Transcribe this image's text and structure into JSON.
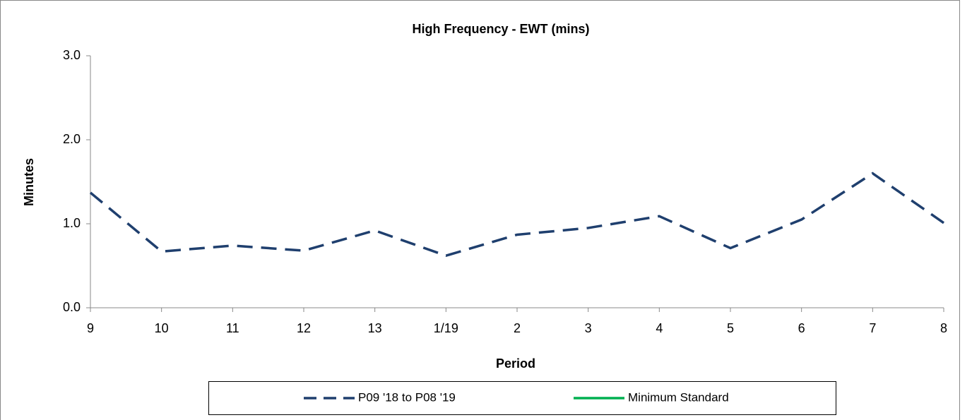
{
  "chart_data": {
    "type": "line",
    "title": "High Frequency - EWT (mins)",
    "x_label": "Period",
    "y_label": "Minutes",
    "categories": [
      "9",
      "10",
      "11",
      "12",
      "13",
      "1/19",
      "2",
      "3",
      "4",
      "5",
      "6",
      "7",
      "8"
    ],
    "series": [
      {
        "name": "P09 '18 to P08 '19",
        "color": "#1f3f6e",
        "dashed": true,
        "values": [
          1.37,
          0.67,
          0.74,
          0.68,
          0.92,
          0.62,
          0.87,
          0.95,
          1.09,
          0.71,
          1.05,
          1.6,
          1.01
        ]
      },
      {
        "name": "Minimum Standard",
        "color": "#00b050",
        "dashed": false,
        "values": [
          null,
          null,
          null,
          null,
          null,
          null,
          null,
          null,
          null,
          null,
          null,
          null,
          null
        ]
      }
    ],
    "ylim": [
      0,
      3
    ],
    "yticks": [
      {
        "value": 0,
        "label": "0.0"
      },
      {
        "value": 1,
        "label": "1.0"
      },
      {
        "value": 2,
        "label": "2.0"
      },
      {
        "value": 3,
        "label": "3.0"
      }
    ],
    "grid": false
  }
}
